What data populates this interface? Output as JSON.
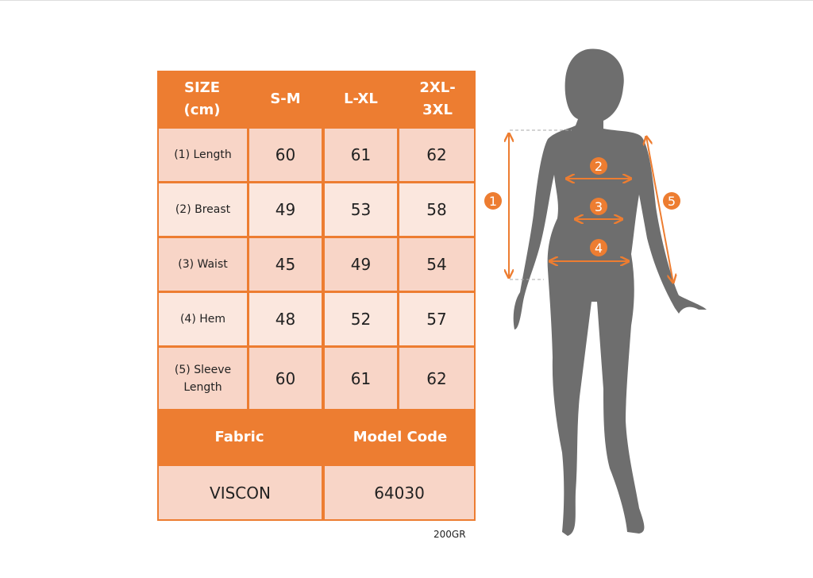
{
  "table": {
    "headers": [
      "SIZE (cm)",
      "S-M",
      "L-XL",
      "2XL-3XL"
    ],
    "rows": [
      {
        "label": "(1) Length",
        "values": [
          "60",
          "61",
          "62"
        ]
      },
      {
        "label": "(2) Breast",
        "values": [
          "49",
          "53",
          "58"
        ]
      },
      {
        "label": "(3) Waist",
        "values": [
          "45",
          "49",
          "54"
        ]
      },
      {
        "label": "(4) Hem",
        "values": [
          "48",
          "52",
          "57"
        ]
      },
      {
        "label": "(5) Sleeve Length",
        "values": [
          "60",
          "61",
          "62"
        ]
      }
    ],
    "footer_headers": [
      "Fabric",
      "Model Code"
    ],
    "footer_values": [
      "VISCON",
      "64030"
    ]
  },
  "note": "200GR",
  "figure": {
    "markers": [
      "1",
      "2",
      "3",
      "4",
      "5"
    ]
  },
  "colors": {
    "accent": "#ED7D31",
    "row_dark": "#F8D5C7",
    "row_light": "#FBE7DE",
    "silhouette": "#6E6E6E"
  }
}
